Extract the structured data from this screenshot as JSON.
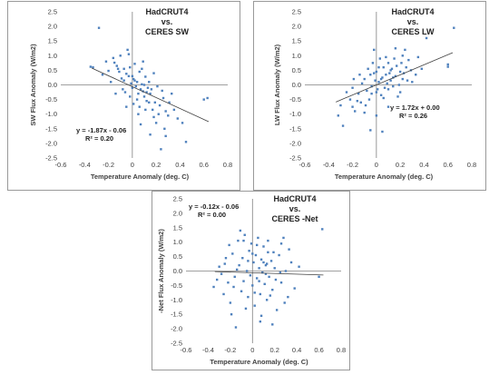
{
  "chart_data": [
    {
      "type": "scatter",
      "title_lines": [
        "HadCRUT4",
        "vs.",
        "CERES SW"
      ],
      "xlabel": "Temperature Anomaly (deg. C)",
      "ylabel": "SW Flux Anomaly (W/m2)",
      "xlim": [
        -0.6,
        0.8
      ],
      "ylim": [
        -2.5,
        2.5
      ],
      "xticks": [
        "-0.6",
        "-0.4",
        "-0.2",
        "0",
        "0.2",
        "0.4",
        "0.6",
        "0.8"
      ],
      "yticks": [
        "2.5",
        "2.0",
        "1.5",
        "1.0",
        "0.5",
        "0.0",
        "-0.5",
        "-1.0",
        "-1.5",
        "-2.0",
        "-2.5"
      ],
      "equation": "y = -1.87x - 0.06",
      "r2": "R² = 0.20",
      "trendline": {
        "slope": -1.87,
        "intercept": -0.06,
        "x_range": [
          -0.34,
          0.64
        ]
      },
      "point_color": "#4f81bd",
      "points": [
        [
          -0.28,
          1.95
        ],
        [
          -0.35,
          0.62
        ],
        [
          -0.33,
          0.6
        ],
        [
          -0.2,
          0.48
        ],
        [
          -0.16,
          0.92
        ],
        [
          -0.15,
          0.76
        ],
        [
          -0.12,
          0.55
        ],
        [
          -0.1,
          1.0
        ],
        [
          -0.09,
          0.22
        ],
        [
          -0.07,
          0.15
        ],
        [
          -0.05,
          0.38
        ],
        [
          -0.04,
          1.2
        ],
        [
          -0.03,
          1.05
        ],
        [
          -0.02,
          0.6
        ],
        [
          -0.01,
          0.05
        ],
        [
          0.0,
          -0.1
        ],
        [
          0.01,
          0.2
        ],
        [
          0.02,
          0.72
        ],
        [
          0.03,
          -0.05
        ],
        [
          0.04,
          0.1
        ],
        [
          0.05,
          -0.3
        ],
        [
          0.06,
          0.45
        ],
        [
          0.07,
          -0.15
        ],
        [
          0.08,
          0.02
        ],
        [
          0.09,
          -0.22
        ],
        [
          0.1,
          -0.4
        ],
        [
          0.11,
          0.28
        ],
        [
          0.12,
          -0.55
        ],
        [
          0.13,
          -0.1
        ],
        [
          0.14,
          -0.6
        ],
        [
          0.15,
          -0.3
        ],
        [
          0.17,
          -0.85
        ],
        [
          0.18,
          0.4
        ],
        [
          0.2,
          -1.3
        ],
        [
          0.22,
          -1.0
        ],
        [
          0.24,
          -2.2
        ],
        [
          0.26,
          -0.45
        ],
        [
          0.28,
          -0.9
        ],
        [
          0.3,
          -1.05
        ],
        [
          0.33,
          -0.3
        ],
        [
          0.38,
          -1.15
        ],
        [
          0.42,
          -1.3
        ],
        [
          0.45,
          -1.95
        ],
        [
          0.6,
          -0.5
        ],
        [
          0.63,
          -0.45
        ],
        [
          -0.25,
          0.35
        ],
        [
          -0.22,
          0.8
        ],
        [
          -0.18,
          0.1
        ],
        [
          -0.14,
          -0.3
        ],
        [
          -0.11,
          0.45
        ],
        [
          -0.08,
          -0.15
        ],
        [
          -0.06,
          -0.25
        ],
        [
          -0.02,
          -0.4
        ],
        [
          0.0,
          0.3
        ],
        [
          0.02,
          0.15
        ],
        [
          0.04,
          -0.5
        ],
        [
          0.06,
          -0.75
        ],
        [
          0.08,
          0.55
        ],
        [
          0.1,
          0.0
        ],
        [
          0.12,
          -0.25
        ],
        [
          0.14,
          0.1
        ],
        [
          0.16,
          -0.15
        ],
        [
          0.19,
          -0.6
        ],
        [
          0.21,
          -0.05
        ],
        [
          0.23,
          -0.7
        ],
        [
          0.25,
          -0.2
        ],
        [
          0.27,
          -1.5
        ],
        [
          0.31,
          -0.6
        ],
        [
          0.35,
          -0.85
        ],
        [
          0.15,
          -1.7
        ],
        [
          0.05,
          -1.0
        ],
        [
          -0.05,
          -0.75
        ],
        [
          -0.13,
          0.65
        ],
        [
          -0.03,
          0.3
        ],
        [
          0.01,
          -0.65
        ],
        [
          0.07,
          -1.35
        ],
        [
          0.18,
          -1.1
        ],
        [
          0.09,
          0.8
        ],
        [
          -0.07,
          0.55
        ],
        [
          0.11,
          -0.85
        ],
        [
          0.28,
          -1.75
        ]
      ]
    },
    {
      "type": "scatter",
      "title_lines": [
        "HadCRUT4",
        "vs.",
        "CERES LW"
      ],
      "xlabel": "Temperature Anomaly (deg. C)",
      "ylabel": "LW Flux Anomaly (W/m2)",
      "xlim": [
        -0.6,
        0.8
      ],
      "ylim": [
        -2.5,
        2.5
      ],
      "xticks": [
        "-0.6",
        "-0.4",
        "-0.2",
        "0",
        "0.2",
        "0.4",
        "0.6",
        "0.8"
      ],
      "yticks": [
        "2.5",
        "2.0",
        "1.5",
        "1.0",
        "0.5",
        "0.0",
        "-0.5",
        "-1.0",
        "-1.5",
        "-2.0",
        "-2.5"
      ],
      "equation": "y = 1.72x + 0.00",
      "r2": "R² = 0.26",
      "trendline": {
        "slope": 1.72,
        "intercept": 0.0,
        "x_range": [
          -0.34,
          0.64
        ]
      },
      "point_color": "#4f81bd",
      "points": [
        [
          -0.32,
          -1.05
        ],
        [
          -0.28,
          -1.4
        ],
        [
          -0.3,
          -0.7
        ],
        [
          -0.22,
          -0.5
        ],
        [
          -0.2,
          -0.1
        ],
        [
          -0.18,
          -0.9
        ],
        [
          -0.15,
          -0.3
        ],
        [
          -0.13,
          -0.6
        ],
        [
          -0.1,
          0.2
        ],
        [
          -0.08,
          -0.2
        ],
        [
          -0.06,
          -0.5
        ],
        [
          -0.05,
          0.35
        ],
        [
          -0.04,
          -0.05
        ],
        [
          -0.03,
          0.75
        ],
        [
          -0.02,
          1.2
        ],
        [
          -0.01,
          0.15
        ],
        [
          0.0,
          0.45
        ],
        [
          0.01,
          -0.15
        ],
        [
          0.02,
          0.1
        ],
        [
          0.03,
          0.9
        ],
        [
          0.04,
          -0.35
        ],
        [
          0.05,
          0.25
        ],
        [
          0.06,
          0.6
        ],
        [
          0.07,
          -0.1
        ],
        [
          0.08,
          0.35
        ],
        [
          0.09,
          0.05
        ],
        [
          0.1,
          0.75
        ],
        [
          0.11,
          0.4
        ],
        [
          0.12,
          0.15
        ],
        [
          0.13,
          0.55
        ],
        [
          0.14,
          -0.05
        ],
        [
          0.15,
          0.9
        ],
        [
          0.16,
          0.3
        ],
        [
          0.18,
          -0.4
        ],
        [
          0.2,
          0.45
        ],
        [
          0.22,
          0.2
        ],
        [
          0.24,
          1.2
        ],
        [
          0.25,
          0.6
        ],
        [
          0.27,
          0.85
        ],
        [
          0.3,
          0.1
        ],
        [
          0.33,
          0.35
        ],
        [
          0.35,
          0.95
        ],
        [
          0.38,
          0.55
        ],
        [
          0.42,
          1.6
        ],
        [
          0.6,
          0.7
        ],
        [
          0.6,
          0.62
        ],
        [
          0.65,
          1.95
        ],
        [
          -0.25,
          -0.25
        ],
        [
          -0.19,
          0.2
        ],
        [
          -0.16,
          -0.55
        ],
        [
          -0.12,
          0.05
        ],
        [
          -0.09,
          -0.7
        ],
        [
          -0.07,
          0.55
        ],
        [
          -0.04,
          -0.3
        ],
        [
          -0.02,
          0.4
        ],
        [
          0.0,
          -0.25
        ],
        [
          0.02,
          0.6
        ],
        [
          0.04,
          0.2
        ],
        [
          0.06,
          -0.45
        ],
        [
          0.08,
          0.95
        ],
        [
          0.1,
          -0.15
        ],
        [
          0.12,
          0.5
        ],
        [
          0.14,
          0.25
        ],
        [
          0.17,
          0.65
        ],
        [
          0.19,
          0.0
        ],
        [
          0.21,
          0.75
        ],
        [
          0.23,
          0.4
        ],
        [
          0.26,
          0.15
        ],
        [
          0.29,
          0.5
        ],
        [
          -0.05,
          -1.55
        ],
        [
          0.05,
          -1.6
        ],
        [
          0.0,
          -1.05
        ],
        [
          -0.1,
          -0.95
        ],
        [
          0.1,
          -0.75
        ],
        [
          0.2,
          -0.25
        ],
        [
          -0.14,
          0.35
        ],
        [
          0.16,
          1.25
        ],
        [
          0.22,
          1.0
        ],
        [
          -0.2,
          -0.75
        ]
      ]
    },
    {
      "type": "scatter",
      "title_lines": [
        "HadCRUT4",
        "vs.",
        "CERES -Net"
      ],
      "xlabel": "Temperature Anomaly (deg. C)",
      "ylabel": "-Net Flux Anomaly (W/m2)",
      "xlim": [
        -0.6,
        0.8
      ],
      "ylim": [
        -2.5,
        2.5
      ],
      "xticks": [
        "-0.6",
        "-0.4",
        "-0.2",
        "0",
        "0.2",
        "0.4",
        "0.6",
        "0.8"
      ],
      "yticks": [
        "2.5",
        "2.0",
        "1.5",
        "1.0",
        "0.5",
        "0.0",
        "-0.5",
        "-1.0",
        "-1.5",
        "-2.0",
        "-2.5"
      ],
      "equation": "y = -0.12x - 0.06",
      "r2": "R² = 0.00",
      "trendline": {
        "slope": -0.12,
        "intercept": -0.06,
        "x_range": [
          -0.34,
          0.64
        ]
      },
      "point_color": "#4f81bd",
      "points": [
        [
          -0.35,
          -0.55
        ],
        [
          -0.3,
          0.15
        ],
        [
          -0.28,
          -0.1
        ],
        [
          -0.25,
          0.25
        ],
        [
          -0.22,
          -0.4
        ],
        [
          -0.2,
          -1.1
        ],
        [
          -0.18,
          0.6
        ],
        [
          -0.16,
          -0.2
        ],
        [
          -0.15,
          -1.95
        ],
        [
          -0.13,
          1.05
        ],
        [
          -0.12,
          0.2
        ],
        [
          -0.1,
          -0.7
        ],
        [
          -0.09,
          0.45
        ],
        [
          -0.08,
          -0.35
        ],
        [
          -0.07,
          1.25
        ],
        [
          -0.05,
          0.0
        ],
        [
          -0.04,
          -0.9
        ],
        [
          -0.03,
          0.7
        ],
        [
          -0.02,
          -0.15
        ],
        [
          -0.01,
          0.95
        ],
        [
          0.0,
          -0.5
        ],
        [
          0.01,
          0.3
        ],
        [
          0.02,
          -1.2
        ],
        [
          0.03,
          0.55
        ],
        [
          0.04,
          -0.25
        ],
        [
          0.05,
          1.15
        ],
        [
          0.06,
          0.1
        ],
        [
          0.07,
          -0.8
        ],
        [
          0.08,
          0.4
        ],
        [
          0.09,
          -0.05
        ],
        [
          0.1,
          0.85
        ],
        [
          0.11,
          -0.45
        ],
        [
          0.12,
          0.2
        ],
        [
          0.13,
          -1.0
        ],
        [
          0.14,
          0.65
        ],
        [
          0.15,
          -0.2
        ],
        [
          0.17,
          0.35
        ],
        [
          0.18,
          -0.65
        ],
        [
          0.2,
          0.1
        ],
        [
          0.22,
          -1.35
        ],
        [
          0.24,
          0.55
        ],
        [
          0.26,
          -0.4
        ],
        [
          0.28,
          1.15
        ],
        [
          0.3,
          0.0
        ],
        [
          0.32,
          -0.9
        ],
        [
          0.35,
          0.3
        ],
        [
          0.38,
          -0.6
        ],
        [
          0.42,
          0.15
        ],
        [
          0.6,
          -0.2
        ],
        [
          0.63,
          1.45
        ],
        [
          -0.26,
          -0.8
        ],
        [
          -0.21,
          0.9
        ],
        [
          -0.17,
          -0.55
        ],
        [
          -0.14,
          0.05
        ],
        [
          -0.11,
          1.4
        ],
        [
          -0.06,
          -1.3
        ],
        [
          -0.04,
          0.35
        ],
        [
          0.0,
          0.6
        ],
        [
          0.02,
          -0.75
        ],
        [
          0.04,
          0.9
        ],
        [
          0.06,
          -0.35
        ],
        [
          0.08,
          -1.55
        ],
        [
          0.1,
          0.3
        ],
        [
          0.12,
          -0.1
        ],
        [
          0.14,
          1.05
        ],
        [
          0.16,
          -0.85
        ],
        [
          0.19,
          0.65
        ],
        [
          0.21,
          -0.3
        ],
        [
          0.25,
          -0.05
        ],
        [
          0.29,
          -1.1
        ],
        [
          0.33,
          0.75
        ],
        [
          -0.32,
          -0.3
        ],
        [
          -0.24,
          0.45
        ],
        [
          -0.08,
          1.05
        ],
        [
          0.07,
          -1.75
        ],
        [
          0.18,
          -1.85
        ],
        [
          0.26,
          0.95
        ],
        [
          -0.19,
          -1.5
        ],
        [
          0.13,
          0.25
        ]
      ]
    }
  ]
}
